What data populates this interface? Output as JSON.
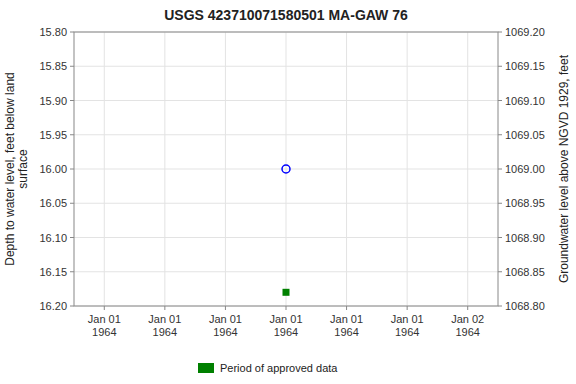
{
  "chart_data": {
    "type": "scatter",
    "title": "USGS 423710071580501 MA-GAW   76",
    "ylabel": "Depth to water level, feet below land\nsurface",
    "y2label": "Groundwater level above NGVD 1929, feet",
    "categories": [
      "Jan 01\n1964",
      "Jan 01\n1964",
      "Jan 01\n1964",
      "Jan 01\n1964",
      "Jan 01\n1964",
      "Jan 01\n1964",
      "Jan 02\n1964"
    ],
    "series": [
      {
        "color": "#0000ff",
        "marker": "circle-open",
        "values": [
          null,
          null,
          null,
          16.0,
          null,
          null,
          null
        ]
      },
      {
        "name": "Period of approved data",
        "color": "#008000",
        "marker": "square",
        "values": [
          null,
          null,
          null,
          16.18,
          null,
          null,
          null
        ]
      }
    ],
    "ylim": [
      16.2,
      15.8
    ],
    "yticks": [
      {
        "value": 15.8,
        "label": "15.80"
      },
      {
        "value": 15.85,
        "label": "15.85"
      },
      {
        "value": 15.9,
        "label": "15.90"
      },
      {
        "value": 15.95,
        "label": "15.95"
      },
      {
        "value": 16.0,
        "label": "16.00"
      },
      {
        "value": 16.05,
        "label": "16.05"
      },
      {
        "value": 16.1,
        "label": "16.10"
      },
      {
        "value": 16.15,
        "label": "16.15"
      },
      {
        "value": 16.2,
        "label": "16.20"
      }
    ],
    "y2lim": [
      1068.8,
      1069.2
    ],
    "y2ticks": [
      {
        "value": 1069.2,
        "label": "1069.20"
      },
      {
        "value": 1069.15,
        "label": "1069.15"
      },
      {
        "value": 1069.1,
        "label": "1069.10"
      },
      {
        "value": 1069.05,
        "label": "1069.05"
      },
      {
        "value": 1069.0,
        "label": "1069.00"
      },
      {
        "value": 1068.95,
        "label": "1068.95"
      },
      {
        "value": 1068.9,
        "label": "1068.90"
      },
      {
        "value": 1068.85,
        "label": "1068.85"
      },
      {
        "value": 1068.8,
        "label": "1068.80"
      }
    ],
    "grid": true,
    "legend": "bottom"
  }
}
